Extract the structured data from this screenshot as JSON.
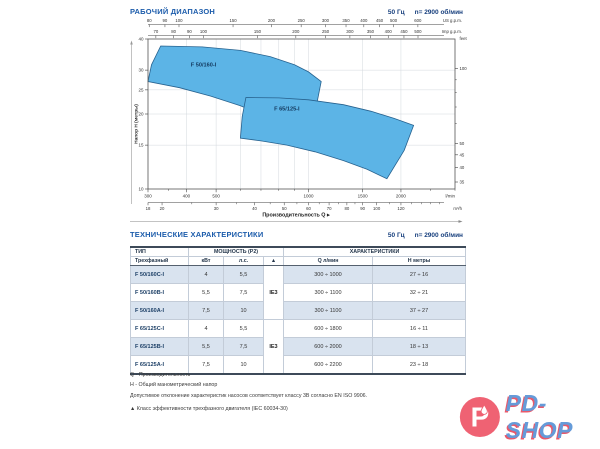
{
  "meta": {
    "freq": "50 Гц",
    "speed": "n= 2900 об/мин"
  },
  "sections": {
    "working_range": "РАБОЧИЙ ДИАПАЗОН",
    "tech_specs": "ТЕХНИЧЕСКИЕ ХАРАКТЕРИСТИКИ"
  },
  "chart_data": {
    "type": "area",
    "title": "РАБОЧИЙ ДИАПАЗОН",
    "x_scale": "log",
    "y_scale": "log",
    "xlim_lmin": [
      300,
      3000
    ],
    "ylim_m": [
      10,
      40
    ],
    "x_title": "Производительность Q ▸",
    "y_title": "Напор H (метры)",
    "axes": {
      "us_gpm": {
        "unit": "US g.p.m.",
        "lmin_per_unit": 3.785,
        "ticks": [
          80,
          90,
          100,
          150,
          200,
          250,
          300,
          350,
          400,
          450,
          500,
          600
        ]
      },
      "imp_gpm": {
        "unit": "Imp g.p.m.",
        "lmin_per_unit": 4.546,
        "ticks": [
          70,
          80,
          90,
          100,
          150,
          200,
          250,
          300,
          350,
          400,
          450,
          500
        ]
      },
      "lmin": {
        "unit": "l/min",
        "ticks": [
          300,
          400,
          500,
          1000,
          1500,
          2000
        ],
        "minor": [
          350,
          600,
          700,
          800,
          900,
          2500,
          3000
        ]
      },
      "m3h": {
        "unit": "m³/h",
        "lmin_per_unit": 16.667,
        "ticks": [
          18,
          20,
          30,
          40,
          50,
          60,
          70,
          80,
          90,
          100,
          120
        ],
        "minor": [
          25,
          35,
          45,
          55,
          65,
          75,
          85,
          110,
          130,
          140,
          150,
          160
        ]
      },
      "head_m": {
        "ticks": [
          40,
          30,
          25,
          20,
          15,
          10
        ]
      },
      "feet": {
        "unit": "feet",
        "m_per_unit": 0.3048,
        "ticks": [
          100,
          50,
          45,
          40,
          35
        ],
        "minor": [
          90,
          80,
          70,
          60
        ]
      }
    },
    "grid": {
      "x_lmin": [
        400,
        500,
        600,
        700,
        800,
        900,
        1000,
        1500,
        2000
      ],
      "y_m": [
        15,
        20,
        25,
        30
      ]
    },
    "region_fill": "#5cb4e6",
    "region_stroke": "#27628f",
    "regions": [
      {
        "name": "F 50/160-I",
        "label_at_qh": [
          455,
          31
        ],
        "outline_qh": [
          [
            300,
            27
          ],
          [
            308,
            31.5
          ],
          [
            330,
            37.5
          ],
          [
            450,
            37.2
          ],
          [
            600,
            36
          ],
          [
            750,
            34
          ],
          [
            900,
            31.5
          ],
          [
            1000,
            29.5
          ],
          [
            1100,
            27
          ],
          [
            1060,
            21.5
          ],
          [
            1000,
            16
          ],
          [
            900,
            17.2
          ],
          [
            750,
            19.2
          ],
          [
            600,
            21.6
          ],
          [
            480,
            23.6
          ],
          [
            380,
            25.5
          ]
        ]
      },
      {
        "name": "F 65/125-I",
        "label_at_qh": [
          850,
          20.7
        ],
        "outline_qh": [
          [
            600,
            16
          ],
          [
            608,
            19.5
          ],
          [
            625,
            23.3
          ],
          [
            800,
            23.2
          ],
          [
            1000,
            22.8
          ],
          [
            1300,
            21.8
          ],
          [
            1600,
            20.5
          ],
          [
            1900,
            19.2
          ],
          [
            2200,
            18
          ],
          [
            2050,
            14.3
          ],
          [
            1800,
            11
          ],
          [
            1550,
            12
          ],
          [
            1300,
            13
          ],
          [
            1050,
            14.1
          ],
          [
            850,
            15
          ],
          [
            700,
            15.6
          ]
        ]
      }
    ]
  },
  "table": {
    "head": {
      "type": "ТИП",
      "phase": "Трехфазный",
      "power": "МОЩНОСТЬ (P2)",
      "kw": "кВт",
      "hp": "л.с.",
      "triangle": "▲",
      "characteristics": "ХАРАКТЕРИСТИКИ",
      "q": "Q л/мин",
      "h": "H метры"
    },
    "groups": [
      {
        "efficiency": "IE3",
        "rows": [
          {
            "model": "F 50/160C-I",
            "kw": "4",
            "hp": "5,5",
            "q": "300 ÷ 1000",
            "h": "27 ÷ 16"
          },
          {
            "model": "F 50/160B-I",
            "kw": "5,5",
            "hp": "7,5",
            "q": "300 ÷ 1100",
            "h": "32 ÷ 21"
          },
          {
            "model": "F 50/160A-I",
            "kw": "7,5",
            "hp": "10",
            "q": "300 ÷ 1100",
            "h": "37 ÷ 27"
          }
        ]
      },
      {
        "efficiency": "IE3",
        "rows": [
          {
            "model": "F 65/125C-I",
            "kw": "4",
            "hp": "5,5",
            "q": "600 ÷ 1800",
            "h": "16 ÷ 11"
          },
          {
            "model": "F 65/125B-I",
            "kw": "5,5",
            "hp": "7,5",
            "q": "600 ÷ 2000",
            "h": "18 ÷ 13"
          },
          {
            "model": "F 65/125A-I",
            "kw": "7,5",
            "hp": "10",
            "q": "600 ÷ 2200",
            "h": "23 ÷ 18"
          }
        ]
      }
    ]
  },
  "footnotes": [
    "Q - Производительность",
    "H - Общий манометрический напор",
    "Допустимое отклонение характеристик насосов соответствует классу 3B согласно EN ISO 9906.",
    "▲   Класс эффективности трехфазного двигателя (IEC 60034-30)"
  ],
  "logo": {
    "text": "PD-SHOP",
    "icon_letter": "P",
    "circle_color": "#ef6273",
    "text_color": "#659bd9"
  }
}
